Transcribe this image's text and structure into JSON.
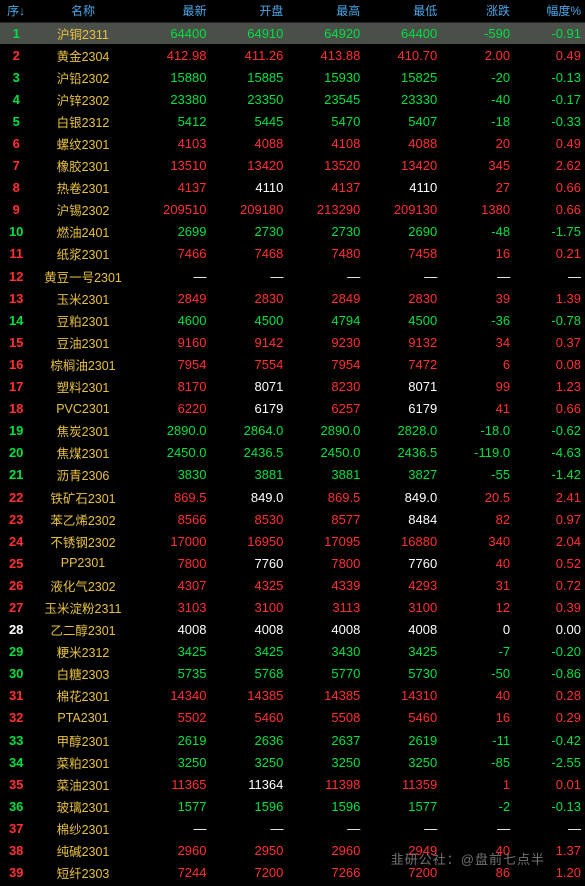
{
  "colors": {
    "background": "#000000",
    "header_text": "#4aa7e8",
    "name_text": "#e8c040",
    "up": "#ff3030",
    "down": "#00e040",
    "neutral": "#ffffff",
    "highlight_row": "#4a4f4a",
    "watermark": "#888888"
  },
  "headers": [
    "序↓",
    "名称",
    "最新",
    "开盘",
    "最高",
    "最低",
    "涨跌",
    "幅度%"
  ],
  "watermark": "韭研公社：@盘前七点半",
  "rows": [
    {
      "seq": "1",
      "name": "沪铜2311",
      "latest": "64400",
      "open": "64910",
      "high": "64920",
      "low": "64400",
      "chg": "-590",
      "pct": "-0.91",
      "hl": true
    },
    {
      "seq": "2",
      "name": "黄金2304",
      "latest": "412.98",
      "open": "411.26",
      "high": "413.88",
      "low": "410.70",
      "chg": "2.00",
      "pct": "0.49"
    },
    {
      "seq": "3",
      "name": "沪铅2302",
      "latest": "15880",
      "open": "15885",
      "high": "15930",
      "low": "15825",
      "chg": "-20",
      "pct": "-0.13"
    },
    {
      "seq": "4",
      "name": "沪锌2302",
      "latest": "23380",
      "open": "23350",
      "high": "23545",
      "low": "23330",
      "chg": "-40",
      "pct": "-0.17"
    },
    {
      "seq": "5",
      "name": "白银2312",
      "latest": "5412",
      "open": "5445",
      "high": "5470",
      "low": "5407",
      "chg": "-18",
      "pct": "-0.33"
    },
    {
      "seq": "6",
      "name": "螺纹2301",
      "latest": "4103",
      "open": "4088",
      "high": "4108",
      "low": "4088",
      "chg": "20",
      "pct": "0.49"
    },
    {
      "seq": "7",
      "name": "橡胶2301",
      "latest": "13510",
      "open": "13420",
      "high": "13520",
      "low": "13420",
      "chg": "345",
      "pct": "2.62"
    },
    {
      "seq": "8",
      "name": "热卷2301",
      "latest": "4137",
      "open": "4110",
      "high": "4137",
      "low": "4110",
      "chg": "27",
      "pct": "0.66",
      "open_w": true,
      "low_w": true
    },
    {
      "seq": "9",
      "name": "沪锡2302",
      "latest": "209510",
      "open": "209180",
      "high": "213290",
      "low": "209130",
      "chg": "1380",
      "pct": "0.66"
    },
    {
      "seq": "10",
      "name": "燃油2401",
      "latest": "2699",
      "open": "2730",
      "high": "2730",
      "low": "2690",
      "chg": "-48",
      "pct": "-1.75"
    },
    {
      "seq": "11",
      "name": "纸浆2301",
      "latest": "7466",
      "open": "7468",
      "high": "7480",
      "low": "7458",
      "chg": "16",
      "pct": "0.21"
    },
    {
      "seq": "12",
      "name": "黄豆一号2301",
      "latest": "—",
      "open": "—",
      "high": "—",
      "low": "—",
      "chg": "—",
      "pct": "—",
      "empty": true
    },
    {
      "seq": "13",
      "name": "玉米2301",
      "latest": "2849",
      "open": "2830",
      "high": "2849",
      "low": "2830",
      "chg": "39",
      "pct": "1.39"
    },
    {
      "seq": "14",
      "name": "豆粕2301",
      "latest": "4600",
      "open": "4500",
      "high": "4794",
      "low": "4500",
      "chg": "-36",
      "pct": "-0.78"
    },
    {
      "seq": "15",
      "name": "豆油2301",
      "latest": "9160",
      "open": "9142",
      "high": "9230",
      "low": "9132",
      "chg": "34",
      "pct": "0.37"
    },
    {
      "seq": "16",
      "name": "棕榈油2301",
      "latest": "7954",
      "open": "7554",
      "high": "7954",
      "low": "7472",
      "chg": "6",
      "pct": "0.08"
    },
    {
      "seq": "17",
      "name": "塑料2301",
      "latest": "8170",
      "open": "8071",
      "high": "8230",
      "low": "8071",
      "chg": "99",
      "pct": "1.23",
      "open_w": true,
      "low_w": true
    },
    {
      "seq": "18",
      "name": "PVC2301",
      "latest": "6220",
      "open": "6179",
      "high": "6257",
      "low": "6179",
      "chg": "41",
      "pct": "0.66",
      "open_w": true,
      "low_w": true
    },
    {
      "seq": "19",
      "name": "焦炭2301",
      "latest": "2890.0",
      "open": "2864.0",
      "high": "2890.0",
      "low": "2828.0",
      "chg": "-18.0",
      "pct": "-0.62"
    },
    {
      "seq": "20",
      "name": "焦煤2301",
      "latest": "2450.0",
      "open": "2436.5",
      "high": "2450.0",
      "low": "2436.5",
      "chg": "-119.0",
      "pct": "-4.63"
    },
    {
      "seq": "21",
      "name": "沥青2306",
      "latest": "3830",
      "open": "3881",
      "high": "3881",
      "low": "3827",
      "chg": "-55",
      "pct": "-1.42"
    },
    {
      "seq": "22",
      "name": "铁矿石2301",
      "latest": "869.5",
      "open": "849.0",
      "high": "869.5",
      "low": "849.0",
      "chg": "20.5",
      "pct": "2.41",
      "open_w": true,
      "low_w": true
    },
    {
      "seq": "23",
      "name": "苯乙烯2302",
      "latest": "8566",
      "open": "8530",
      "high": "8577",
      "low": "8484",
      "chg": "82",
      "pct": "0.97",
      "low_w": true
    },
    {
      "seq": "24",
      "name": "不锈钢2302",
      "latest": "17000",
      "open": "16950",
      "high": "17095",
      "low": "16880",
      "chg": "340",
      "pct": "2.04"
    },
    {
      "seq": "25",
      "name": "PP2301",
      "latest": "7800",
      "open": "7760",
      "high": "7800",
      "low": "7760",
      "chg": "40",
      "pct": "0.52",
      "open_w": true,
      "low_w": true
    },
    {
      "seq": "26",
      "name": "液化气2302",
      "latest": "4307",
      "open": "4325",
      "high": "4339",
      "low": "4293",
      "chg": "31",
      "pct": "0.72"
    },
    {
      "seq": "27",
      "name": "玉米淀粉2311",
      "latest": "3103",
      "open": "3100",
      "high": "3113",
      "low": "3100",
      "chg": "12",
      "pct": "0.39"
    },
    {
      "seq": "28",
      "name": "乙二醇2301",
      "latest": "4008",
      "open": "4008",
      "high": "4008",
      "low": "4008",
      "chg": "0",
      "pct": "0.00",
      "all_w": true
    },
    {
      "seq": "29",
      "name": "粳米2312",
      "latest": "3425",
      "open": "3425",
      "high": "3430",
      "low": "3425",
      "chg": "-7",
      "pct": "-0.20"
    },
    {
      "seq": "30",
      "name": "白糖2303",
      "latest": "5735",
      "open": "5768",
      "high": "5770",
      "low": "5730",
      "chg": "-50",
      "pct": "-0.86"
    },
    {
      "seq": "31",
      "name": "棉花2301",
      "latest": "14340",
      "open": "14385",
      "high": "14385",
      "low": "14310",
      "chg": "40",
      "pct": "0.28"
    },
    {
      "seq": "32",
      "name": "PTA2301",
      "latest": "5502",
      "open": "5460",
      "high": "5508",
      "low": "5460",
      "chg": "16",
      "pct": "0.29"
    },
    {
      "seq": "33",
      "name": "甲醇2301",
      "latest": "2619",
      "open": "2636",
      "high": "2637",
      "low": "2619",
      "chg": "-11",
      "pct": "-0.42"
    },
    {
      "seq": "34",
      "name": "菜粕2301",
      "latest": "3250",
      "open": "3250",
      "high": "3250",
      "low": "3250",
      "chg": "-85",
      "pct": "-2.55"
    },
    {
      "seq": "35",
      "name": "菜油2301",
      "latest": "11365",
      "open": "11364",
      "high": "11398",
      "low": "11359",
      "chg": "1",
      "pct": "0.01",
      "open_w": true
    },
    {
      "seq": "36",
      "name": "玻璃2301",
      "latest": "1577",
      "open": "1596",
      "high": "1596",
      "low": "1577",
      "chg": "-2",
      "pct": "-0.13"
    },
    {
      "seq": "37",
      "name": "棉纱2301",
      "latest": "—",
      "open": "—",
      "high": "—",
      "low": "—",
      "chg": "—",
      "pct": "—",
      "empty": true
    },
    {
      "seq": "38",
      "name": "纯碱2301",
      "latest": "2960",
      "open": "2950",
      "high": "2960",
      "low": "2949",
      "chg": "40",
      "pct": "1.37"
    },
    {
      "seq": "39",
      "name": "短纤2303",
      "latest": "7244",
      "open": "7200",
      "high": "7266",
      "low": "7200",
      "chg": "86",
      "pct": "1.20"
    }
  ]
}
